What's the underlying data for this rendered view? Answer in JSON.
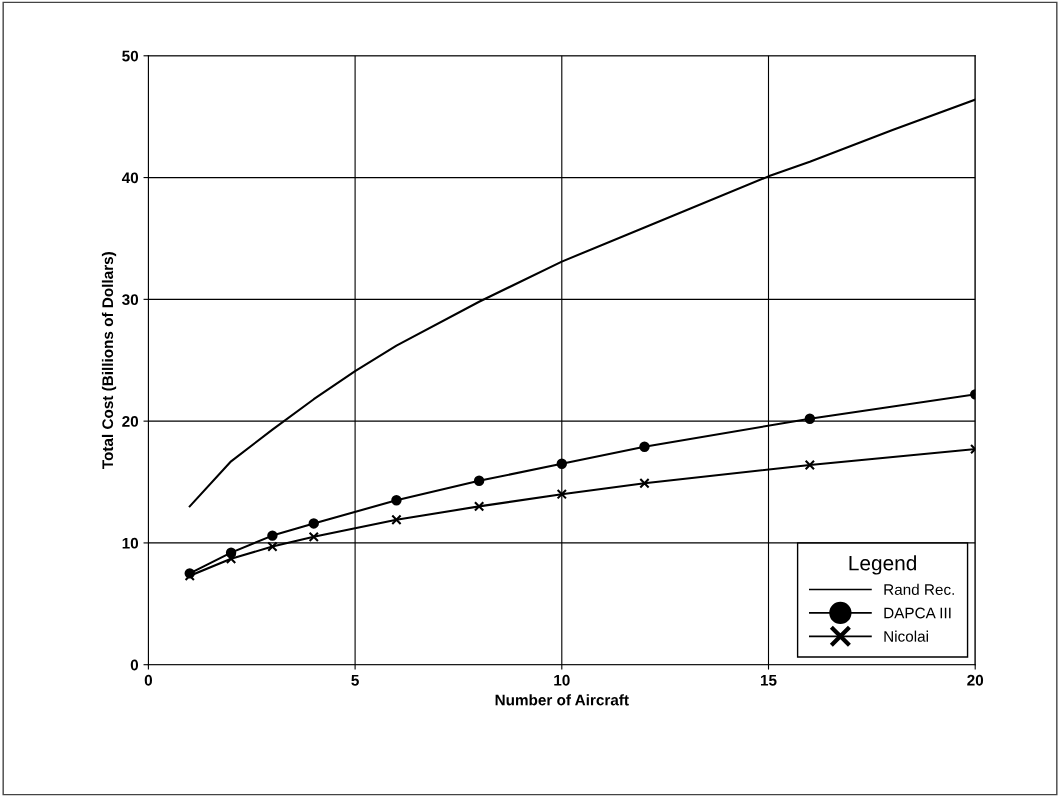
{
  "chart_data": {
    "type": "line",
    "xlabel": "Number of Aircraft",
    "ylabel": "Total Cost (Billions of Dollars)",
    "xlim": [
      0,
      20
    ],
    "ylim": [
      0,
      50
    ],
    "xticks": [
      0,
      5,
      10,
      15,
      20
    ],
    "yticks": [
      0,
      10,
      20,
      30,
      40,
      50
    ],
    "grid": true,
    "legend": "bottom right",
    "legend_title": "Legend",
    "series": [
      {
        "name": "Rand Rec.",
        "color": "#000000",
        "marker": "none",
        "x": [
          1,
          2,
          3,
          4,
          5,
          6,
          8,
          10,
          12,
          15,
          16,
          18,
          20
        ],
        "values": [
          13.0,
          16.7,
          19.3,
          21.8,
          24.1,
          26.2,
          29.8,
          33.1,
          35.9,
          40.1,
          41.3,
          43.9,
          46.4
        ]
      },
      {
        "name": "DAPCA III",
        "color": "#000000",
        "marker": "circle",
        "x": [
          1,
          2,
          3,
          4,
          6,
          8,
          10,
          12,
          16,
          20
        ],
        "values": [
          7.5,
          9.2,
          10.6,
          11.6,
          13.5,
          15.1,
          16.5,
          17.9,
          20.2,
          22.2
        ]
      },
      {
        "name": "Nicolai",
        "color": "#000000",
        "marker": "cross",
        "x": [
          1,
          2,
          3,
          4,
          6,
          8,
          10,
          12,
          16,
          20
        ],
        "values": [
          7.3,
          8.7,
          9.7,
          10.5,
          11.9,
          13.0,
          14.0,
          14.9,
          16.4,
          17.7
        ]
      }
    ]
  }
}
